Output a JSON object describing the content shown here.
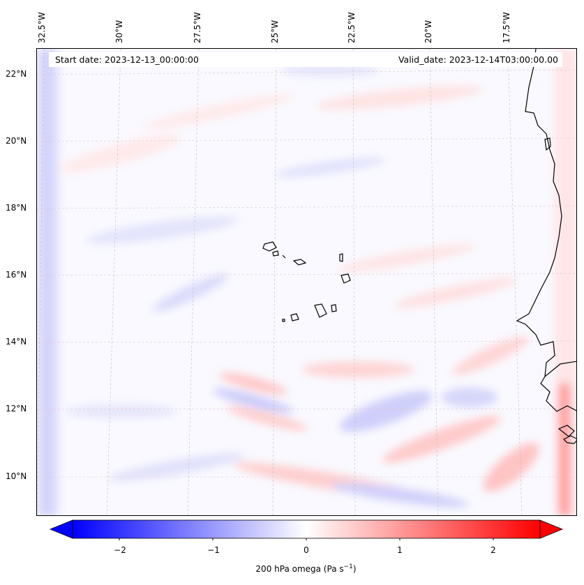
{
  "map": {
    "start_label": "Start date: 2023-12-13_00:00:00",
    "valid_label": "Valid_date: 2023-12-14T03:00:00.00",
    "lon_labels": [
      "32.5°W",
      "30°W",
      "27.5°W",
      "25°W",
      "22.5°W",
      "20°W",
      "17.5°W"
    ],
    "lat_labels": [
      "22°N",
      "20°N",
      "18°N",
      "16°N",
      "14°N",
      "12°N",
      "10°N"
    ]
  },
  "colorbar": {
    "label": "200 hPa omega (Pa s",
    "label_sup": "−1",
    "label_end": ")",
    "min": -2.5,
    "max": 2.5,
    "ticks": [
      "−2",
      "−1",
      "0",
      "1",
      "2"
    ],
    "tick_values": [
      -2,
      -1,
      0,
      1,
      2
    ],
    "colormap": "bwr",
    "low_color": "#0000ff",
    "mid_color": "#ffffff",
    "high_color": "#ff0000"
  }
}
